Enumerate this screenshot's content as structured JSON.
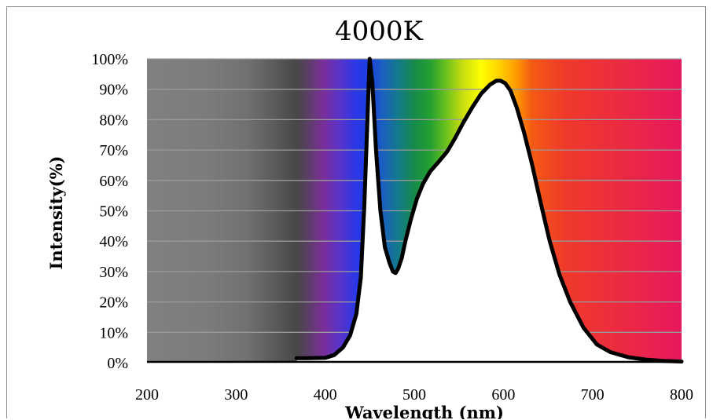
{
  "chart_data": {
    "type": "area",
    "title": "4000K",
    "xlabel": "Wavelength (nm)",
    "ylabel": "Intensity(%)",
    "xlim": [
      200,
      800
    ],
    "ylim": [
      0,
      100
    ],
    "x_ticks": [
      "200",
      "300",
      "400",
      "500",
      "600",
      "700",
      "800"
    ],
    "y_ticks": [
      "0%",
      "10%",
      "20%",
      "30%",
      "40%",
      "50%",
      "60%",
      "70%",
      "80%",
      "90%",
      "100%"
    ],
    "grid": true,
    "legend": "none",
    "background": "visible light spectrum gradient",
    "series": [
      {
        "line_color": "#000000",
        "fill_color": "#ffffff",
        "x": [
          368,
          380,
          400,
          410,
          420,
          428,
          435,
          440,
          444,
          448,
          450,
          453,
          457,
          462,
          467,
          472,
          476,
          479,
          482,
          486,
          490,
          496,
          503,
          510,
          518,
          527,
          537,
          546,
          555,
          565,
          575,
          585,
          592,
          597,
          602,
          608,
          615,
          623,
          632,
          642,
          652,
          663,
          675,
          690,
          705,
          720,
          740,
          760,
          780,
          800
        ],
        "y": [
          1.5,
          1.5,
          1.6,
          2.5,
          5,
          9,
          16,
          28,
          52,
          85,
          100,
          92,
          70,
          50,
          38,
          33,
          30,
          29.5,
          31,
          34.5,
          40,
          47,
          54,
          59,
          63,
          66,
          69.5,
          74,
          79,
          84,
          88.5,
          91.5,
          92.8,
          92.8,
          92,
          89.5,
          84,
          76,
          65.5,
          52.5,
          40,
          29,
          20,
          11.5,
          6,
          3.5,
          1.8,
          1,
          0.6,
          0.4
        ]
      }
    ]
  }
}
